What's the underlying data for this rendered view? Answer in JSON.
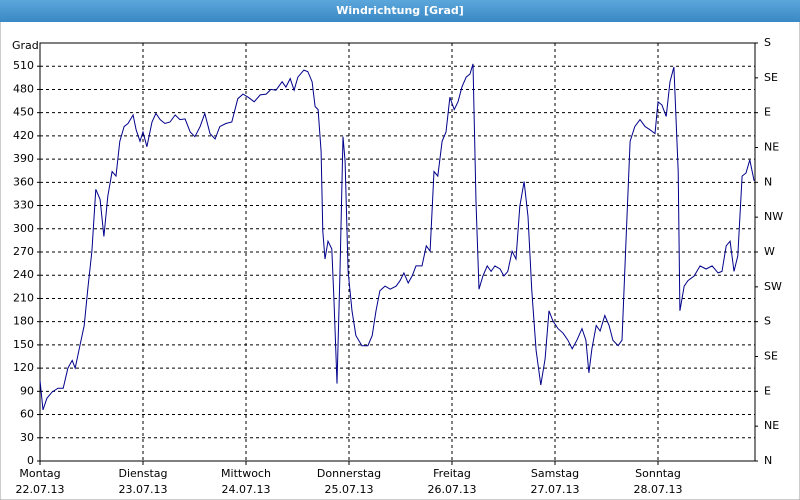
{
  "chart_data": {
    "type": "line",
    "title": "Windrichtung [Grad]",
    "ylabel": "Grad",
    "xlim": [
      0,
      166.6
    ],
    "ylim": [
      0,
      540
    ],
    "y2lim": [
      0,
      540
    ],
    "grid": true,
    "xticks": [
      {
        "value": 0,
        "label": "Montag",
        "date": "22.07.13"
      },
      {
        "value": 24,
        "label": "Dienstag",
        "date": "23.07.13"
      },
      {
        "value": 48,
        "label": "Mittwoch",
        "date": "24.07.13"
      },
      {
        "value": 72,
        "label": "Donnerstag",
        "date": "25.07.13"
      },
      {
        "value": 96,
        "label": "Freitag",
        "date": "26.07.13"
      },
      {
        "value": 120,
        "label": "Samstag",
        "date": "27.07.13"
      },
      {
        "value": 144,
        "label": "Sonntag",
        "date": "28.07.13"
      }
    ],
    "yticks": [
      0,
      30,
      60,
      90,
      120,
      150,
      180,
      210,
      240,
      270,
      300,
      330,
      360,
      390,
      420,
      450,
      480,
      510
    ],
    "y2ticks": [
      {
        "value": 0,
        "label": "N"
      },
      {
        "value": 45,
        "label": "NE"
      },
      {
        "value": 90,
        "label": "E"
      },
      {
        "value": 135,
        "label": "SE"
      },
      {
        "value": 180,
        "label": "S"
      },
      {
        "value": 225,
        "label": "SW"
      },
      {
        "value": 270,
        "label": "W"
      },
      {
        "value": 315,
        "label": "NW"
      },
      {
        "value": 360,
        "label": "N"
      },
      {
        "value": 405,
        "label": "NE"
      },
      {
        "value": 450,
        "label": "E"
      },
      {
        "value": 495,
        "label": "SE"
      },
      {
        "value": 540,
        "label": "S"
      }
    ],
    "series": [
      {
        "color": "#00008b",
        "x": [
          0,
          0.7,
          1.6,
          2.8,
          4.2,
          5.4,
          6.5,
          7.5,
          8.2,
          9.3,
          10.3,
          11.2,
          12.1,
          13,
          14,
          14.9,
          15.8,
          16.8,
          17.7,
          18.6,
          19.6,
          20.5,
          21.7,
          22.4,
          23.3,
          24,
          24.9,
          26.1,
          27,
          28,
          29.1,
          30.3,
          31.5,
          32.6,
          33.8,
          35,
          36.1,
          37.3,
          38.4,
          39.6,
          40.8,
          41.9,
          43.3,
          44.7,
          46.1,
          47.3,
          48.5,
          49.9,
          51.3,
          52.7,
          53.8,
          55,
          56.4,
          57.3,
          58.3,
          59.2,
          60.1,
          61.5,
          62.4,
          63.4,
          64.1,
          64.8,
          65.5,
          65.9,
          66.4,
          67.1,
          68,
          68.5,
          69.2,
          69.9,
          70.6,
          71.1,
          71.8,
          72.7,
          73.6,
          75,
          76.4,
          77.4,
          78.3,
          79.2,
          80.4,
          81.6,
          83,
          83.9,
          84.8,
          85.8,
          86.7,
          87.6,
          89,
          90,
          90.9,
          91.8,
          92.7,
          93.7,
          94.6,
          95.5,
          96.5,
          97.4,
          98.3,
          99.3,
          100.2,
          100.9,
          101.6,
          102.3,
          103.2,
          104.2,
          105.1,
          106,
          107.2,
          108.1,
          109,
          110,
          110.9,
          111.8,
          112.8,
          113.7,
          114.6,
          115.6,
          116.7,
          117.7,
          118.6,
          119.5,
          120.7,
          121.9,
          123,
          124,
          125.1,
          126.3,
          127.2,
          127.9,
          128.6,
          129.6,
          130.5,
          131.6,
          132.6,
          133.5,
          134.7,
          135.6,
          136.5,
          137.5,
          138.6,
          139.8,
          141,
          142.1,
          143.3,
          144,
          144.9,
          145.9,
          146.8,
          147.7,
          148.7,
          149.1,
          150.1,
          151,
          152.4,
          153.8,
          155.2,
          156.6,
          158,
          158.9,
          159.9,
          160.8,
          161.7,
          162.6,
          163.6,
          164.5,
          165.4,
          166.4
        ],
        "values": [
          104,
          66,
          81,
          89,
          94,
          94,
          120,
          130,
          120,
          149,
          175,
          226,
          271,
          351,
          338,
          290,
          342,
          374,
          368,
          413,
          432,
          436,
          447,
          428,
          413,
          425,
          406,
          438,
          449,
          441,
          436,
          438,
          447,
          441,
          442,
          425,
          419,
          432,
          449,
          423,
          416,
          432,
          436,
          438,
          468,
          474,
          470,
          464,
          473,
          474,
          480,
          479,
          490,
          483,
          494,
          479,
          496,
          505,
          503,
          490,
          458,
          454,
          400,
          297,
          261,
          284,
          274,
          207,
          100,
          245,
          419,
          387,
          245,
          194,
          162,
          149,
          149,
          162,
          194,
          220,
          226,
          222,
          226,
          233,
          243,
          230,
          239,
          252,
          252,
          278,
          271,
          374,
          368,
          413,
          425,
          470,
          454,
          464,
          483,
          496,
          500,
          513,
          335,
          222,
          239,
          252,
          245,
          252,
          248,
          239,
          245,
          271,
          261,
          329,
          361,
          316,
          220,
          143,
          98,
          132,
          194,
          181,
          171,
          165,
          156,
          145,
          156,
          171,
          156,
          114,
          145,
          175,
          168,
          188,
          175,
          156,
          149,
          156,
          278,
          413,
          432,
          441,
          432,
          428,
          423,
          464,
          460,
          445,
          490,
          509,
          374,
          194,
          226,
          233,
          239,
          252,
          248,
          252,
          243,
          245,
          278,
          284,
          245,
          265,
          368,
          372,
          389,
          362
        ]
      }
    ]
  }
}
